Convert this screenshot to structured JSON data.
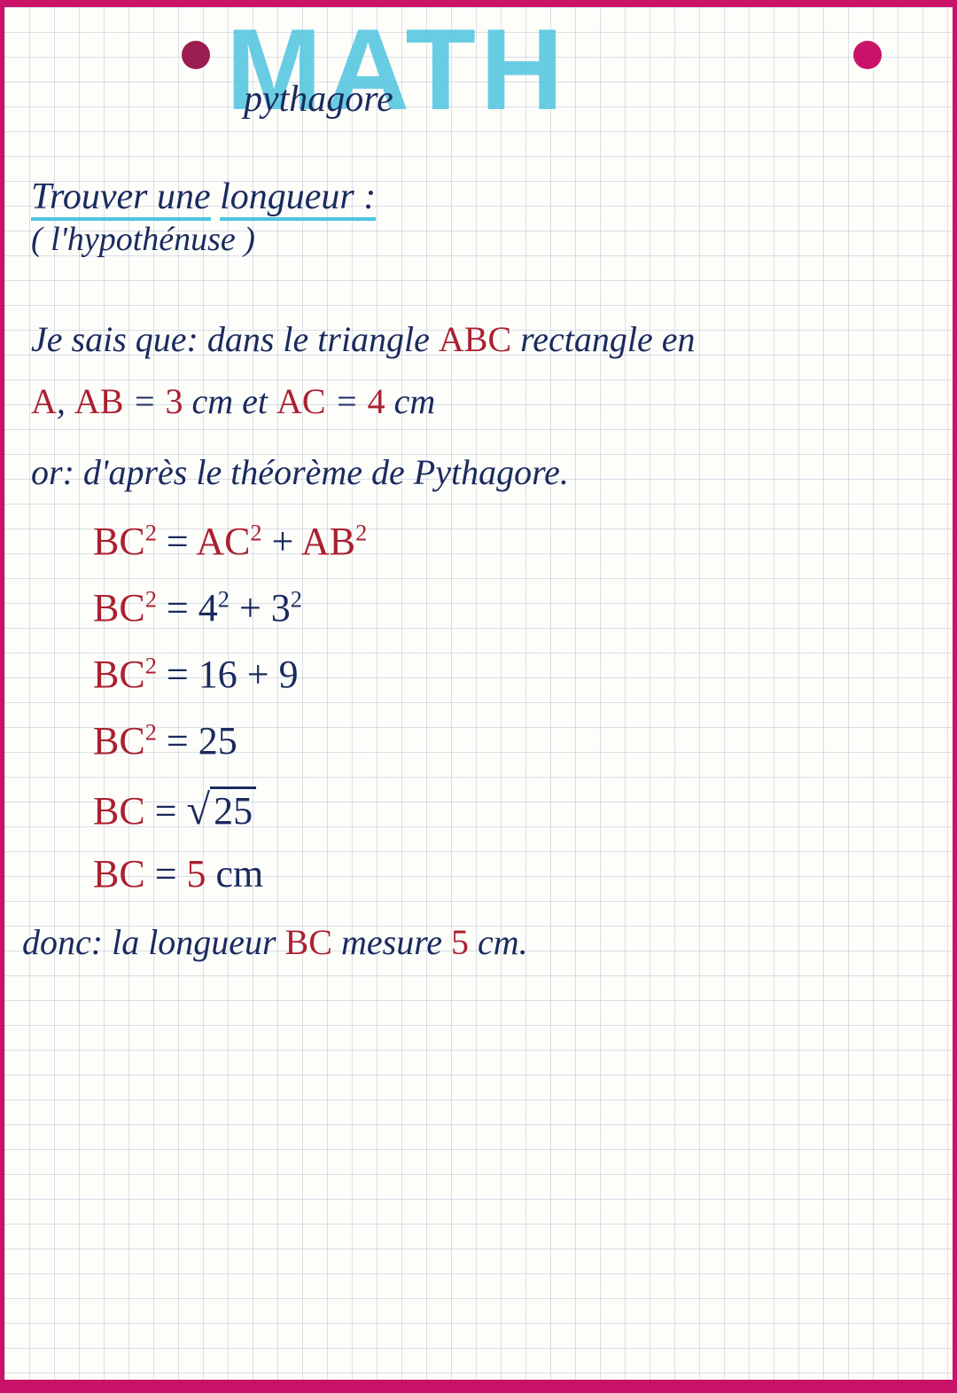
{
  "colors": {
    "grid_line": "rgba(120,130,180,0.25)",
    "paper_bg": "#fdfdfa",
    "outer_bg": "#c91368",
    "hole_left": "#9b1e52",
    "hole_right": "#c91368",
    "highlighter": "#4fc5e0",
    "ink_blue": "#1a2a5e",
    "ink_red": "#aa2030"
  },
  "header": {
    "big_title": "MATH",
    "subtitle": "pythagore"
  },
  "section": {
    "title_part1": "Trouver une",
    "title_part2": "longueur :",
    "subtitle": "( l'hypothénuse )"
  },
  "content": {
    "line1_a": "Je sais que: dans le triangle ",
    "line1_b": "ABC",
    "line1_c": " rectangle en",
    "line2_a": "A",
    "line2_b": ",  ",
    "line2_c": "AB",
    "line2_d": " = ",
    "line2_e": "3",
    "line2_f": " cm   et  ",
    "line2_g": "AC",
    "line2_h": " = ",
    "line2_i": "4",
    "line2_j": " cm",
    "line3": "or:  d'après le théorème de Pythagore.",
    "calc1_a": "BC",
    "calc1_b": " = ",
    "calc1_c": "AC",
    "calc1_d": " + ",
    "calc1_e": "AB",
    "calc2_a": "BC",
    "calc2_b": " = ",
    "calc2_c": "4",
    "calc2_d": " + ",
    "calc2_e": "3",
    "calc3_a": "BC",
    "calc3_b": " = ",
    "calc3_c": "16",
    "calc3_d": "  +  ",
    "calc3_e": "9",
    "calc4_a": "BC",
    "calc4_b": " = ",
    "calc4_c": "25",
    "calc5_a": "BC",
    "calc5_b": " = ",
    "calc5_c": "25",
    "calc6_a": "BC",
    "calc6_b": " = ",
    "calc6_c": "5",
    "calc6_d": " cm",
    "conc_a": "donc:  la longueur ",
    "conc_b": "BC",
    "conc_c": "  mesure  ",
    "conc_d": "5",
    "conc_e": " cm."
  },
  "exponent": "2"
}
